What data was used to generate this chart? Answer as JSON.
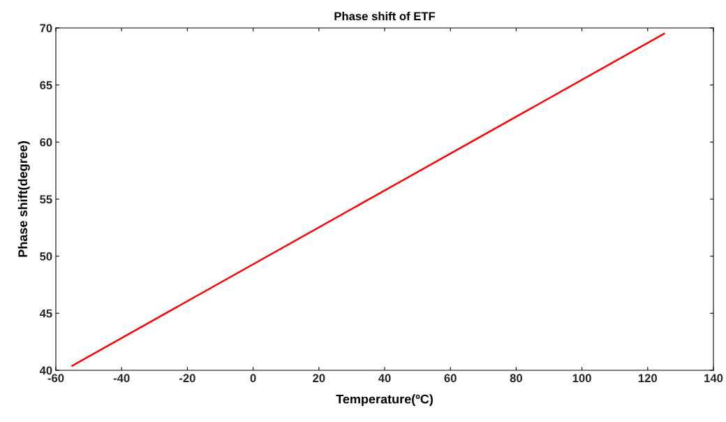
{
  "chart_data": {
    "type": "line",
    "title": "Phase shift of ETF",
    "xlabel": "Temperature(ºC)",
    "ylabel": "Phase shift(degree)",
    "series": [
      {
        "color": "#ff0000",
        "x": [
          -55,
          125
        ],
        "values": [
          40.4,
          69.5
        ]
      }
    ],
    "xlim": [
      -60,
      140
    ],
    "xticks": [
      -60,
      -40,
      -20,
      0,
      20,
      40,
      60,
      80,
      100,
      120,
      140
    ],
    "ylim": [
      40,
      70
    ],
    "yticks": [
      40,
      45,
      50,
      55,
      60,
      65,
      70
    ],
    "grid": false,
    "legend": false,
    "marker": "none",
    "line_style": "solid"
  }
}
